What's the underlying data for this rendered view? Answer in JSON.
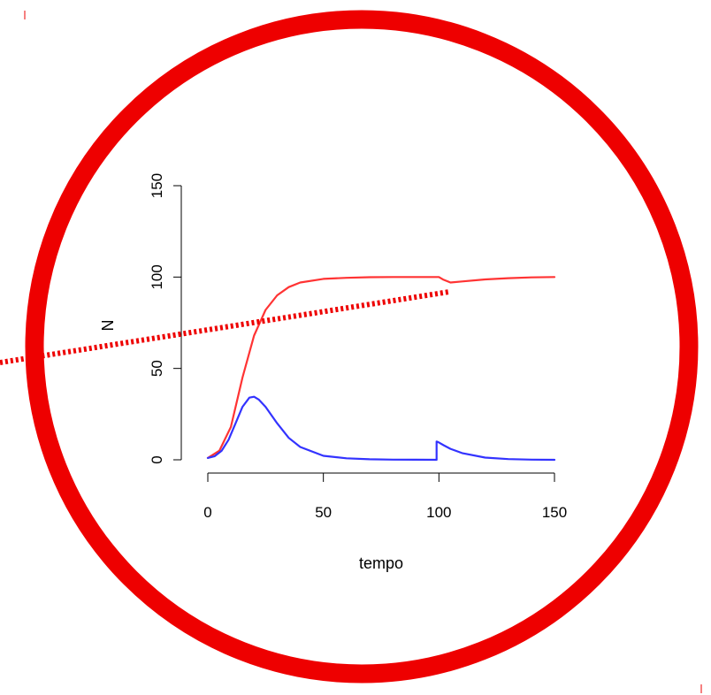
{
  "chart_data": {
    "type": "line",
    "title": "",
    "xlabel": "tempo",
    "ylabel": "N",
    "xlim": [
      0,
      150
    ],
    "ylim": [
      0,
      150
    ],
    "x_ticks": [
      0,
      50,
      100,
      150
    ],
    "y_ticks": [
      0,
      50,
      100,
      150
    ],
    "grid": false,
    "series": [
      {
        "color": "#ff3333",
        "x": [
          0,
          5,
          10,
          15,
          20,
          25,
          30,
          35,
          40,
          50,
          60,
          70,
          80,
          90,
          99,
          100,
          102,
          105,
          110,
          120,
          130,
          140,
          150
        ],
        "y": [
          1,
          5,
          18,
          45,
          68,
          82,
          90,
          94.5,
          97,
          99,
          99.6,
          99.9,
          100,
          100,
          100,
          100,
          98.5,
          97,
          97.6,
          98.7,
          99.4,
          99.8,
          100
        ]
      },
      {
        "color": "#3333ff",
        "x": [
          0,
          3,
          6,
          9,
          12,
          15,
          18,
          20,
          22,
          25,
          30,
          35,
          40,
          50,
          60,
          70,
          80,
          90,
          99,
          99.01,
          100,
          102,
          105,
          110,
          120,
          130,
          140,
          150
        ],
        "y": [
          1,
          2,
          5,
          11,
          20,
          29,
          34,
          34.5,
          33,
          29,
          20,
          12,
          7,
          2.2,
          0.8,
          0.3,
          0.1,
          0.05,
          0,
          10,
          9.5,
          8,
          6,
          3.7,
          1.2,
          0.4,
          0.1,
          0
        ]
      }
    ]
  },
  "annotations": {
    "circle_color": "#ee0000",
    "dotted_line_color": "#ee0000"
  }
}
